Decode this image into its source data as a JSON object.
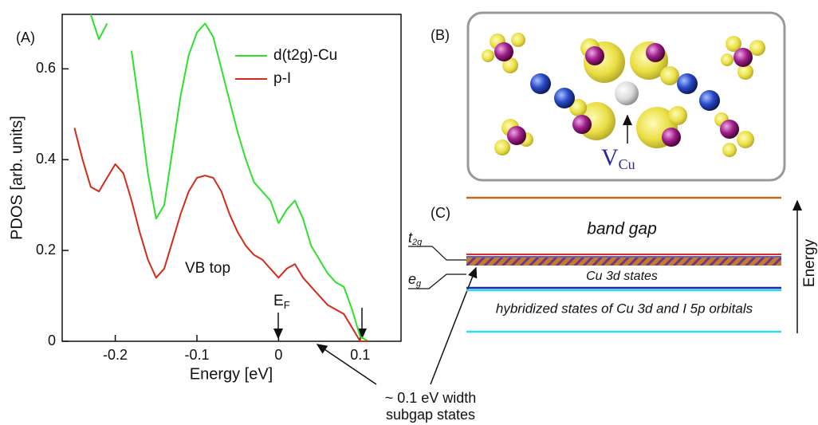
{
  "chart_data": {
    "type": "line",
    "panel_label": "(A)",
    "xlabel": "Energy [eV]",
    "ylabel": "PDOS [arb. units]",
    "x": [
      -0.25,
      -0.24,
      -0.23,
      -0.22,
      -0.21,
      -0.2,
      -0.19,
      -0.18,
      -0.17,
      -0.16,
      -0.15,
      -0.14,
      -0.13,
      -0.12,
      -0.11,
      -0.1,
      -0.09,
      -0.08,
      -0.07,
      -0.06,
      -0.05,
      -0.04,
      -0.03,
      -0.02,
      -0.01,
      0,
      0.01,
      0.02,
      0.03,
      0.04,
      0.05,
      0.06,
      0.07,
      0.08,
      0.09,
      0.1,
      0.11
    ],
    "series": [
      {
        "name": "d(t2g)-Cu",
        "color": "#2ee02e",
        "values": [
          null,
          null,
          0.72,
          0.665,
          0.7,
          null,
          null,
          0.64,
          0.51,
          0.37,
          0.27,
          0.3,
          0.42,
          0.54,
          0.63,
          0.68,
          0.7,
          0.67,
          0.6,
          0.53,
          0.46,
          0.4,
          0.35,
          0.33,
          0.31,
          0.26,
          0.29,
          0.31,
          0.27,
          0.21,
          0.18,
          0.15,
          0.13,
          0.12,
          0.07,
          0.01,
          0
        ]
      },
      {
        "name": "p-I",
        "color": "#d42a1a",
        "values": [
          0.47,
          0.4,
          0.34,
          0.33,
          0.36,
          0.39,
          0.37,
          0.31,
          0.24,
          0.18,
          0.14,
          0.16,
          0.22,
          0.28,
          0.33,
          0.36,
          0.365,
          0.36,
          0.33,
          0.28,
          0.24,
          0.21,
          0.19,
          0.18,
          0.16,
          0.14,
          0.16,
          0.17,
          0.14,
          0.12,
          0.1,
          0.08,
          0.07,
          0.06,
          0.03,
          0,
          0
        ]
      }
    ],
    "xlim": [
      -0.265,
      0.15
    ],
    "ylim": [
      0,
      0.72
    ],
    "xticks": [
      -0.2,
      -0.1,
      0,
      0.1
    ],
    "yticks": [
      0,
      0.2,
      0.4,
      0.6
    ],
    "annotations": {
      "vb_top": "VB top",
      "fermi": {
        "text": "E",
        "sub": "F"
      },
      "subgap": [
        "~ 0.1 eV width",
        "subgap states"
      ]
    }
  },
  "panel_b": {
    "label": "(B)",
    "vacancy": {
      "text": "V",
      "sub": "Cu"
    }
  },
  "panel_c": {
    "label": "(C)",
    "band_gap": "band gap",
    "t2g": {
      "text": "t",
      "sub": "2g"
    },
    "eg": {
      "text": "e",
      "sub": "g"
    },
    "cu_3d": "Cu 3d states",
    "hybridized": "hybridized states of Cu 3d and I 5p orbitals",
    "energy_axis": "Energy"
  }
}
